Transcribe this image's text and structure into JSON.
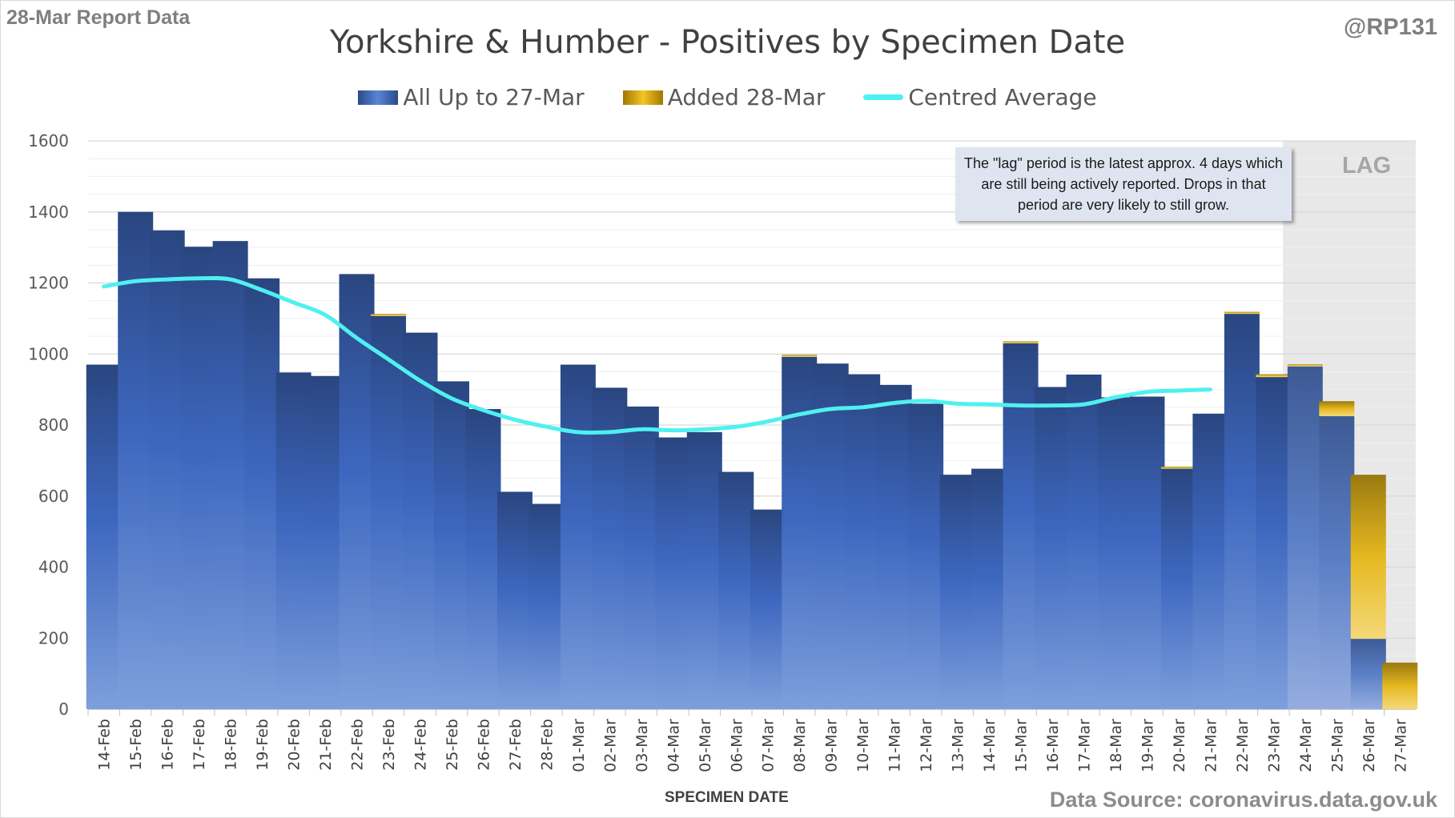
{
  "header": {
    "report_label": "28-Mar Report Data",
    "handle": "@RP131",
    "source": "Data Source: coronavirus.data.gov.uk"
  },
  "annotation": {
    "note": "The \"lag\" period is the latest approx. 4 days which are still being actively reported.  Drops in that period are very likely to still grow.",
    "lag_label": "LAG"
  },
  "colors": {
    "base_series": "#2f5597",
    "added_series": "#e6b422",
    "average_line": "#4ff0f0",
    "lag_shade": "#e8e8e8"
  },
  "chart_data": {
    "type": "bar",
    "title": "Yorkshire & Humber - Positives by Specimen Date",
    "xlabel": "SPECIMEN DATE",
    "ylabel": "",
    "ylim": [
      0,
      1600
    ],
    "yticks": [
      0,
      200,
      400,
      600,
      800,
      1000,
      1200,
      1400,
      1600
    ],
    "grid": true,
    "legend_position": "top",
    "stacked": true,
    "categories": [
      "14-Feb",
      "15-Feb",
      "16-Feb",
      "17-Feb",
      "18-Feb",
      "19-Feb",
      "20-Feb",
      "21-Feb",
      "22-Feb",
      "23-Feb",
      "24-Feb",
      "25-Feb",
      "26-Feb",
      "27-Feb",
      "28-Feb",
      "01-Mar",
      "02-Mar",
      "03-Mar",
      "04-Mar",
      "05-Mar",
      "06-Mar",
      "07-Mar",
      "08-Mar",
      "09-Mar",
      "10-Mar",
      "11-Mar",
      "12-Mar",
      "13-Mar",
      "14-Mar",
      "15-Mar",
      "16-Mar",
      "17-Mar",
      "18-Mar",
      "19-Mar",
      "20-Mar",
      "21-Mar",
      "22-Mar",
      "23-Mar",
      "24-Mar",
      "25-Mar",
      "26-Mar",
      "27-Mar"
    ],
    "series": [
      {
        "name": "All Up to 27-Mar",
        "kind": "bar",
        "values": [
          970,
          1400,
          1348,
          1302,
          1318,
          1213,
          948,
          938,
          1225,
          1107,
          1060,
          923,
          845,
          612,
          578,
          970,
          905,
          852,
          765,
          780,
          668,
          562,
          992,
          973,
          943,
          913,
          860,
          660,
          677,
          1030,
          907,
          942,
          878,
          880,
          677,
          832,
          1113,
          935,
          965,
          825,
          198,
          0
        ]
      },
      {
        "name": "Added 28-Mar",
        "kind": "bar",
        "values": [
          0,
          0,
          0,
          0,
          0,
          0,
          0,
          0,
          0,
          3,
          0,
          0,
          0,
          0,
          0,
          0,
          0,
          0,
          0,
          0,
          0,
          0,
          4,
          0,
          0,
          0,
          0,
          0,
          0,
          4,
          0,
          0,
          0,
          0,
          3,
          0,
          4,
          8,
          5,
          42,
          462,
          131
        ]
      },
      {
        "name": "Centred Average",
        "kind": "line",
        "values": [
          1190,
          1205,
          1210,
          1213,
          1210,
          1180,
          1145,
          1110,
          1045,
          985,
          925,
          875,
          842,
          815,
          795,
          780,
          780,
          788,
          785,
          788,
          795,
          810,
          830,
          845,
          850,
          862,
          868,
          860,
          858,
          855,
          855,
          858,
          878,
          893,
          897,
          900,
          null,
          null,
          null,
          null,
          null,
          null
        ]
      }
    ],
    "lag_categories": [
      "24-Mar",
      "25-Mar",
      "26-Mar",
      "27-Mar"
    ]
  }
}
